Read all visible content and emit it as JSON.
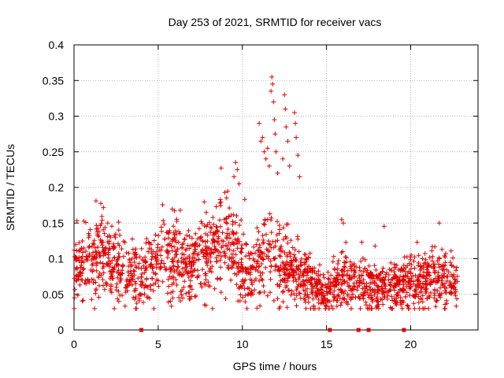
{
  "chart_data": {
    "type": "scatter",
    "title": "Day 253 of 2021, SRMTID for receiver vacs",
    "xlabel": "GPS time / hours",
    "ylabel": "SRMTID / TECUs",
    "xlim": [
      0,
      24
    ],
    "ylim": [
      0,
      0.4
    ],
    "x_ticks": [
      0,
      5,
      10,
      15,
      20
    ],
    "y_ticks": [
      0,
      0.05,
      0.1,
      0.15,
      0.2,
      0.25,
      0.3,
      0.35,
      0.4
    ],
    "x_tick_labels": [
      "0",
      "5",
      "10",
      "15",
      "20"
    ],
    "y_tick_labels": [
      "0",
      "0.05",
      "0.1",
      "0.15",
      "0.2",
      "0.25",
      "0.3",
      "0.35",
      "0.4"
    ],
    "grid": true,
    "marker": "+",
    "color": "#e00000",
    "series": [
      {
        "name": "SRMTID",
        "x_range": [
          0,
          22.8
        ],
        "n_points": 2000,
        "random_seed": 253,
        "baseline_profile": [
          [
            0,
            0.08
          ],
          [
            0.5,
            0.095
          ],
          [
            1,
            0.095
          ],
          [
            1.5,
            0.105
          ],
          [
            2,
            0.1
          ],
          [
            2.5,
            0.085
          ],
          [
            3,
            0.08
          ],
          [
            3.5,
            0.075
          ],
          [
            4,
            0.07
          ],
          [
            4.5,
            0.085
          ],
          [
            5,
            0.1
          ],
          [
            5.5,
            0.105
          ],
          [
            6,
            0.1
          ],
          [
            6.5,
            0.095
          ],
          [
            7,
            0.09
          ],
          [
            7.5,
            0.1
          ],
          [
            8,
            0.11
          ],
          [
            8.5,
            0.125
          ],
          [
            9,
            0.125
          ],
          [
            9.5,
            0.115
          ],
          [
            10,
            0.085
          ],
          [
            10.5,
            0.08
          ],
          [
            11,
            0.095
          ],
          [
            11.5,
            0.105
          ],
          [
            12,
            0.1
          ],
          [
            12.5,
            0.09
          ],
          [
            13,
            0.085
          ],
          [
            13.5,
            0.075
          ],
          [
            14,
            0.065
          ],
          [
            14.5,
            0.055
          ],
          [
            15,
            0.045
          ],
          [
            15.5,
            0.065
          ],
          [
            16,
            0.07
          ],
          [
            16.5,
            0.065
          ],
          [
            17,
            0.06
          ],
          [
            17.5,
            0.06
          ],
          [
            18,
            0.06
          ],
          [
            18.5,
            0.06
          ],
          [
            19,
            0.06
          ],
          [
            19.5,
            0.065
          ],
          [
            20,
            0.065
          ],
          [
            20.5,
            0.068
          ],
          [
            21,
            0.07
          ],
          [
            21.5,
            0.075
          ],
          [
            22,
            0.07
          ],
          [
            22.5,
            0.068
          ],
          [
            22.8,
            0.06
          ]
        ],
        "highlighted_points": [
          [
            9.6,
            0.235
          ],
          [
            9.7,
            0.225
          ],
          [
            9.5,
            0.215
          ],
          [
            9.8,
            0.205
          ],
          [
            11.0,
            0.29
          ],
          [
            11.1,
            0.265
          ],
          [
            11.2,
            0.27
          ],
          [
            11.3,
            0.25
          ],
          [
            11.4,
            0.24
          ],
          [
            11.5,
            0.255
          ],
          [
            11.6,
            0.23
          ],
          [
            11.7,
            0.335
          ],
          [
            11.75,
            0.355
          ],
          [
            11.8,
            0.345
          ],
          [
            11.85,
            0.32
          ],
          [
            11.9,
            0.295
          ],
          [
            11.95,
            0.275
          ],
          [
            12.0,
            0.25
          ],
          [
            12.1,
            0.22
          ],
          [
            12.4,
            0.24
          ],
          [
            12.5,
            0.33
          ],
          [
            12.55,
            0.31
          ],
          [
            12.6,
            0.285
          ],
          [
            12.7,
            0.265
          ],
          [
            12.8,
            0.23
          ],
          [
            13.1,
            0.305
          ],
          [
            13.15,
            0.29
          ],
          [
            13.2,
            0.27
          ],
          [
            13.3,
            0.245
          ],
          [
            13.4,
            0.215
          ],
          [
            15.9,
            0.155
          ],
          [
            16.0,
            0.15
          ],
          [
            21.7,
            0.15
          ]
        ],
        "zero_markers": [
          4.0,
          15.2,
          16.9,
          17.5,
          19.6
        ]
      }
    ]
  }
}
